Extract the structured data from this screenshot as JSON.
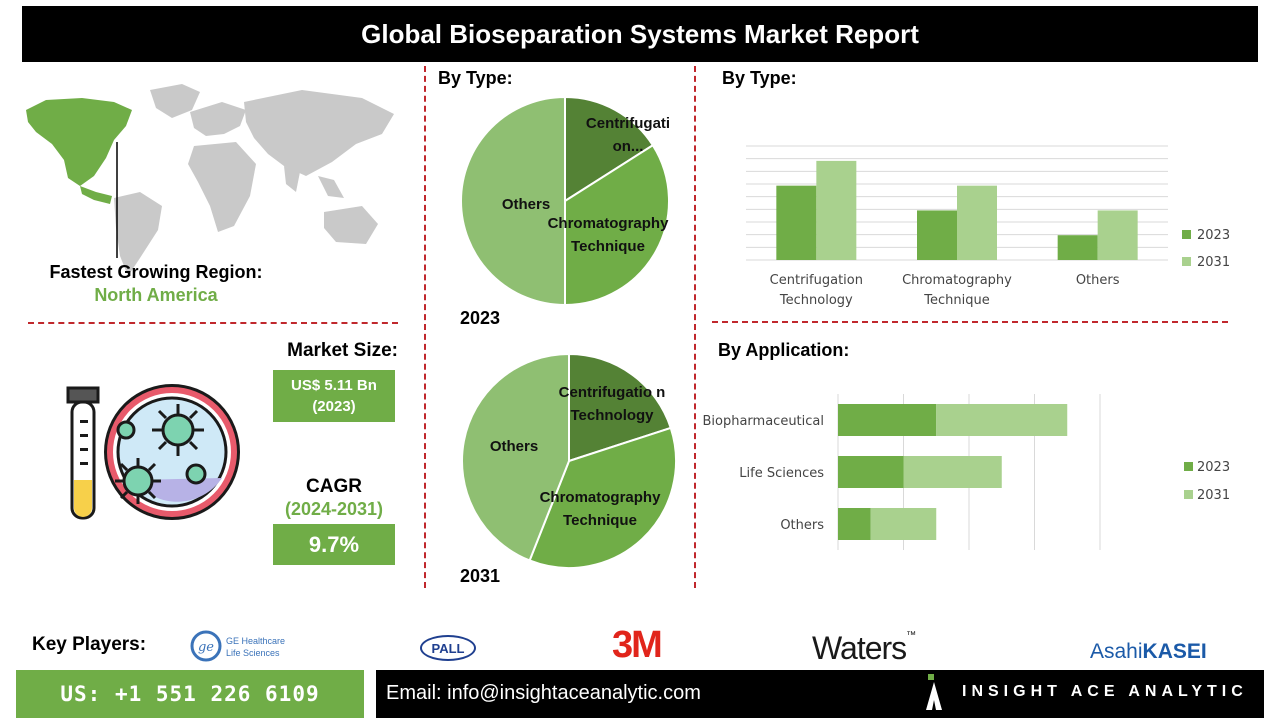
{
  "header": {
    "title": "Global Bioseparation Systems Market Report"
  },
  "region": {
    "label": "Fastest Growing Region:",
    "value": "North America"
  },
  "market_size": {
    "label": "Market Size:",
    "value_line1": "US$ 5.11 Bn",
    "value_line2": "(2023)"
  },
  "cagr": {
    "label": "CAGR",
    "period": "(2024-2031)",
    "value": "9.7%"
  },
  "pie_section": {
    "title": "By Type:",
    "year_2023": "2023",
    "year_2031": "2031",
    "pie_2023_labels": {
      "centrifugation": "Centrifugati on...",
      "chromatography": "Chromatography Technique",
      "others": "Others"
    },
    "pie_2031_labels": {
      "centrifugation": "Centrifugatio n Technology",
      "chromatography": "Chromatography Technique",
      "others": "Others"
    }
  },
  "bar_section": {
    "title": "By Type:"
  },
  "hbar_section": {
    "title": "By Application:"
  },
  "colors": {
    "dark_green": "#548235",
    "mid_green": "#70ad47",
    "light_green": "#a9d18e",
    "pie_light": "#8fbf72",
    "accent_red": "#c0282d"
  },
  "chart_data": [
    {
      "type": "pie",
      "year": "2023",
      "categories": [
        "Centrifugation Technology",
        "Chromatography Technique",
        "Others"
      ],
      "labels": [
        "Centrifugati on...",
        "Chromatography Technique",
        "Others"
      ],
      "values": [
        16,
        34,
        50
      ],
      "colors": [
        "#548235",
        "#70ad47",
        "#8fbf72"
      ]
    },
    {
      "type": "pie",
      "year": "2031",
      "categories": [
        "Centrifugation Technology",
        "Chromatography Technique",
        "Others"
      ],
      "labels": [
        "Centrifugatio n Technology",
        "Chromatography Technique",
        "Others"
      ],
      "values": [
        20,
        36,
        44
      ],
      "colors": [
        "#548235",
        "#70ad47",
        "#8fbf72"
      ]
    },
    {
      "type": "bar",
      "categories": [
        "Centrifugation Technology",
        "Chromatography Technique",
        "Others"
      ],
      "series": [
        {
          "name": "2023",
          "values": [
            3,
            2,
            1
          ],
          "color": "#70ad47"
        },
        {
          "name": "2031",
          "values": [
            4,
            3,
            2
          ],
          "color": "#a9d18e"
        }
      ],
      "ylim": [
        0,
        4.6
      ],
      "grid": true,
      "legend": "right"
    },
    {
      "type": "bar",
      "orientation": "horizontal",
      "stacked": true,
      "categories": [
        "Biopharmaceutical",
        "Life Sciences",
        "Others"
      ],
      "series": [
        {
          "name": "2023",
          "values": [
            1.5,
            1.0,
            0.5
          ],
          "color": "#70ad47"
        },
        {
          "name": "2031",
          "values": [
            2.0,
            1.5,
            1.0
          ],
          "color": "#a9d18e"
        }
      ],
      "xlim": [
        0,
        4.0
      ],
      "grid": true,
      "legend": "right"
    }
  ],
  "key_players": {
    "label": "Key Players:",
    "ge": {
      "line1": "GE Healthcare",
      "line2": "Life Sciences",
      "emblem": "ge"
    },
    "pall": "PALL",
    "three_m": "3M",
    "waters": "Waters",
    "waters_tm": "™",
    "asahi_1": "Asahi",
    "asahi_2": "KASEI"
  },
  "footer": {
    "phone": "US: +1 551 226 6109",
    "email": "Email: info@insightaceanalytic.com",
    "brand": "INSIGHT ACE ANALYTIC"
  }
}
